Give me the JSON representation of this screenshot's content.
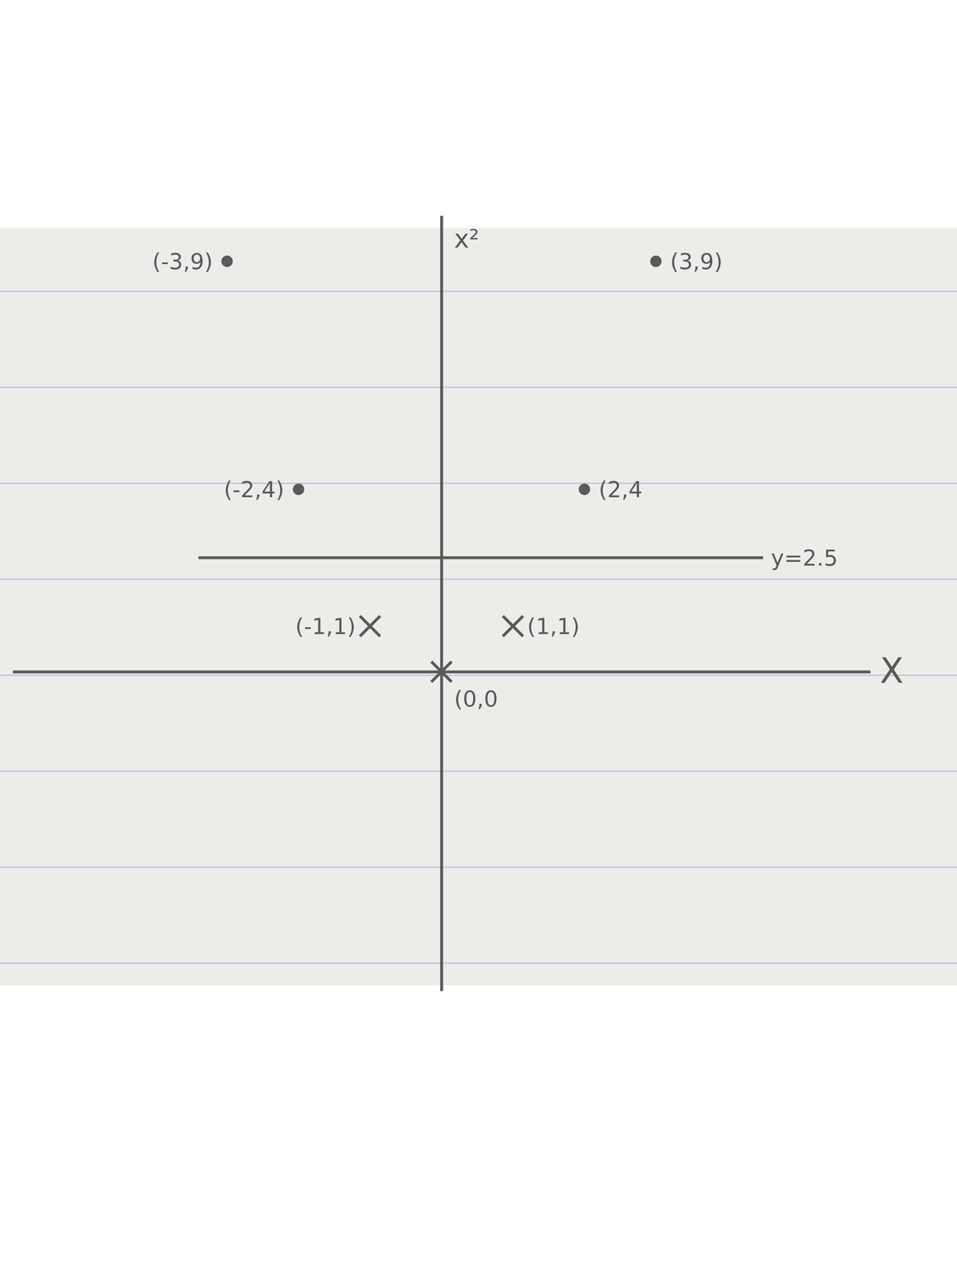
{
  "chart_data": {
    "type": "scatter",
    "x_label": "X",
    "y_label": "x²",
    "xlim": [
      -6,
      6
    ],
    "ylim": [
      -7,
      10
    ],
    "tick_labels": false,
    "grid": false,
    "series": [
      {
        "marker": "circle",
        "x": [
          -3,
          3,
          -2,
          2
        ],
        "values": [
          9,
          9,
          4,
          4
        ],
        "labels": [
          "(-3,9)",
          "(3,9)",
          "(-2,4)",
          "(2,4"
        ]
      },
      {
        "marker": "x",
        "x": [
          -1,
          1,
          0
        ],
        "values": [
          1,
          1,
          0
        ],
        "labels": [
          "(-1,1)",
          "(1,1)",
          "(0,0"
        ]
      }
    ],
    "annotations": [
      {
        "type": "hline",
        "y": 2.5,
        "x": [
          -3.4,
          4.5
        ],
        "label": "y=2.5"
      }
    ]
  }
}
